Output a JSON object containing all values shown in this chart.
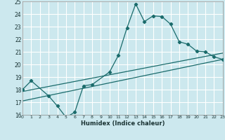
{
  "xlabel": "Humidex (Indice chaleur)",
  "bg_color": "#cce8ee",
  "grid_color": "#ffffff",
  "line_color": "#1a6b6b",
  "xlim": [
    0,
    23
  ],
  "ylim": [
    16,
    25
  ],
  "xticks": [
    0,
    1,
    2,
    3,
    4,
    5,
    6,
    7,
    8,
    9,
    10,
    11,
    12,
    13,
    14,
    15,
    16,
    17,
    18,
    19,
    20,
    21,
    22,
    23
  ],
  "yticks": [
    16,
    17,
    18,
    19,
    20,
    21,
    22,
    23,
    24,
    25
  ],
  "line1_x": [
    0,
    1,
    3,
    4,
    5,
    6,
    7,
    8,
    10,
    11,
    12,
    13,
    14,
    15,
    16,
    17,
    18,
    19,
    20,
    21,
    22,
    23
  ],
  "line1_y": [
    18.0,
    18.7,
    17.5,
    16.7,
    15.8,
    16.2,
    18.3,
    18.4,
    19.4,
    20.7,
    22.9,
    24.8,
    23.4,
    23.85,
    23.8,
    23.2,
    21.8,
    21.6,
    21.05,
    21.0,
    20.6,
    20.4
  ],
  "line2_x": [
    0,
    23
  ],
  "line2_y": [
    17.85,
    20.9
  ],
  "line3_x": [
    0,
    23
  ],
  "line3_y": [
    17.1,
    20.4
  ]
}
